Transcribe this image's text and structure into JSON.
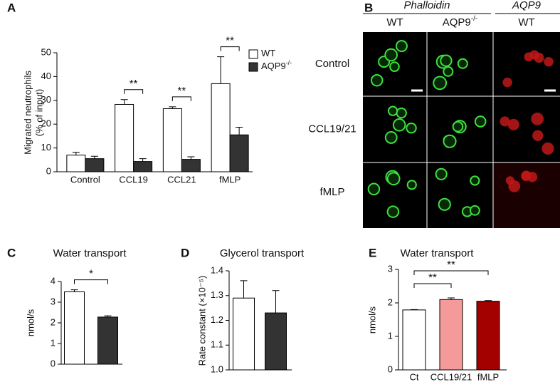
{
  "chart_data": [
    {
      "type": "bar",
      "panel_label": "A",
      "ylabel": [
        "Migrated neutrophils",
        "(% of input)"
      ],
      "categories": [
        "Control",
        "CCL19",
        "CCL21",
        "fMLP"
      ],
      "series": [
        {
          "name": "WT",
          "color": "#ffffff",
          "values": [
            7,
            28.3,
            26.5,
            37
          ],
          "errors": [
            1.2,
            2,
            0.8,
            11.3
          ]
        },
        {
          "name": "AQP9",
          "name_sup": "-/-",
          "color": "#333333",
          "values": [
            5.5,
            4.3,
            5.2,
            15.5
          ],
          "errors": [
            1,
            1.2,
            1.1,
            3.2
          ]
        }
      ],
      "ylim": [
        0,
        50
      ],
      "yticks": [
        0,
        10,
        20,
        30,
        40,
        50
      ],
      "significance": [
        null,
        "**",
        "**",
        "**"
      ],
      "legend": "upper right"
    },
    {
      "type": "bar",
      "panel_label": "C",
      "title": "Water transport",
      "ylabel": "nmol/s",
      "categories": [
        null
      ],
      "series": [
        {
          "color": "#ffffff",
          "values": [
            3.5
          ],
          "errors": [
            0.1
          ]
        },
        {
          "color": "#333333",
          "values": [
            2.28
          ],
          "errors": [
            0.06
          ]
        }
      ],
      "ylim": [
        0,
        4
      ],
      "yticks": [
        0,
        1,
        2,
        3,
        4
      ],
      "significance": [
        "*"
      ]
    },
    {
      "type": "bar",
      "panel_label": "D",
      "title": "Glycerol transport",
      "ylabel": "Rate constant (×10⁻⁵)",
      "categories": [
        null
      ],
      "series": [
        {
          "color": "#ffffff",
          "values": [
            1.29
          ],
          "errors": [
            0.07
          ]
        },
        {
          "color": "#333333",
          "values": [
            1.23
          ],
          "errors": [
            0.09
          ]
        }
      ],
      "ylim": [
        1.0,
        1.4
      ],
      "yticks": [
        {
          "value": 1.0,
          "label": "1.0"
        },
        1.1,
        1.2,
        1.3,
        {
          "value": 1.4,
          "label": "1.4"
        }
      ]
    },
    {
      "type": "bar",
      "panel_label": "E",
      "title": "Water transport",
      "ylabel": "nmol/s",
      "categories": [
        "Ct",
        "CCL19/21",
        "fMLP"
      ],
      "series": [
        {
          "colors": [
            "#ffffff",
            "#f59a9a",
            "#a30000"
          ],
          "values": [
            1.79,
            2.1,
            2.05
          ],
          "errors": [
            0.01,
            0.05,
            0.02
          ]
        }
      ],
      "ylim": [
        0,
        3
      ],
      "yticks": [
        0,
        1,
        2,
        3
      ],
      "comparisons": [
        {
          "between": [
            "Ct",
            "CCL19/21"
          ],
          "label": "**"
        },
        {
          "between": [
            "Ct",
            "fMLP"
          ],
          "label": "**"
        }
      ]
    }
  ],
  "panel_b": {
    "panel_label": "B",
    "headers": [
      "Phalloidin",
      "AQP9"
    ],
    "columns": [
      {
        "text": "WT"
      },
      {
        "text": "AQP9",
        "sup": "-/-"
      },
      {
        "text": "WT"
      }
    ],
    "rows": [
      "Control",
      "CCL19/21",
      "fMLP"
    ]
  }
}
